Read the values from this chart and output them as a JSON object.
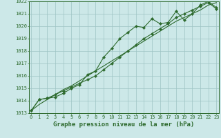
{
  "line1_x": [
    0,
    1,
    2,
    3,
    4,
    5,
    6,
    7,
    8,
    9,
    10,
    11,
    12,
    13,
    14,
    15,
    16,
    17,
    18,
    19,
    20,
    21,
    22,
    23
  ],
  "line1_y": [
    1013.2,
    1014.1,
    1014.2,
    1014.3,
    1014.6,
    1015.0,
    1015.3,
    1016.1,
    1016.4,
    1017.5,
    1018.2,
    1019.0,
    1019.5,
    1020.0,
    1019.9,
    1020.6,
    1020.2,
    1020.3,
    1021.2,
    1020.5,
    1021.0,
    1021.7,
    1022.0,
    1021.5
  ],
  "line2_x": [
    0,
    1,
    2,
    3,
    4,
    5,
    6,
    7,
    8,
    9,
    10,
    11,
    12,
    13,
    14,
    15,
    16,
    17,
    18,
    19,
    20,
    21,
    22,
    23
  ],
  "line2_y": [
    1013.2,
    1014.1,
    1014.2,
    1014.5,
    1014.8,
    1015.1,
    1015.4,
    1015.7,
    1016.0,
    1016.5,
    1017.0,
    1017.5,
    1018.0,
    1018.5,
    1019.0,
    1019.4,
    1019.8,
    1020.2,
    1020.7,
    1021.0,
    1021.3,
    1021.6,
    1021.9,
    1021.4
  ],
  "line3_x": [
    0,
    1,
    2,
    3,
    4,
    5,
    6,
    7,
    8,
    9,
    10,
    11,
    12,
    13,
    14,
    15,
    16,
    17,
    18,
    19,
    20,
    21,
    22,
    23
  ],
  "line3_y": [
    1013.2,
    1013.7,
    1014.1,
    1014.5,
    1014.9,
    1015.2,
    1015.6,
    1016.0,
    1016.4,
    1016.8,
    1017.2,
    1017.6,
    1018.0,
    1018.4,
    1018.8,
    1019.2,
    1019.6,
    1020.0,
    1020.4,
    1020.7,
    1021.0,
    1021.3,
    1021.7,
    1021.9
  ],
  "ylim_min": 1013,
  "ylim_max": 1022,
  "ytick_min": 1013,
  "ytick_max": 1022,
  "xlim_min": 0,
  "xlim_max": 23,
  "line_color": "#2d6a2d",
  "bg_color": "#cce8e8",
  "grid_color": "#9dc4c4",
  "xlabel": "Graphe pression niveau de la mer (hPa)",
  "xlabel_fontsize": 6.5,
  "tick_fontsize": 5.0,
  "line_width": 0.8,
  "marker_size": 2.2
}
